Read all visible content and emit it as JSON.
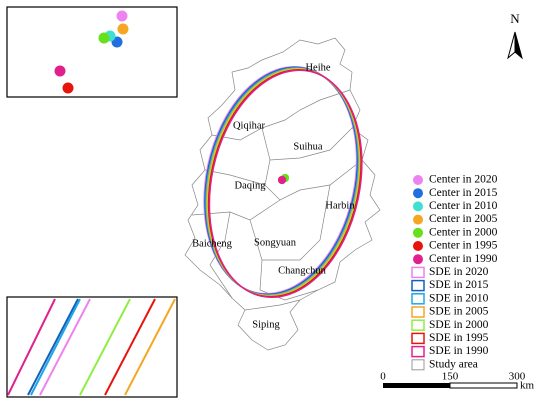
{
  "map": {
    "north_label": "N",
    "cities": [
      "Heihe",
      "Qiqihar",
      "Suihua",
      "Daqing",
      "Harbin",
      "Baicheng",
      "Songyuan",
      "Changchun",
      "Siping"
    ],
    "legend": [
      {
        "label": "Center in 2020",
        "color": "#ee82ee",
        "kind": "point"
      },
      {
        "label": "Center in 2015",
        "color": "#1f6fe0",
        "kind": "point"
      },
      {
        "label": "Center in 2010",
        "color": "#40e0d0",
        "kind": "point"
      },
      {
        "label": "Center in 2005",
        "color": "#f5a623",
        "kind": "point"
      },
      {
        "label": "Center in 2000",
        "color": "#66e01a",
        "kind": "point"
      },
      {
        "label": "Center in 1995",
        "color": "#e8140c",
        "kind": "point"
      },
      {
        "label": "Center in 1990",
        "color": "#e0208f",
        "kind": "point"
      },
      {
        "label": "SDE in 2020",
        "color": "#ee82ee",
        "kind": "ellipse"
      },
      {
        "label": "SDE in 2015",
        "color": "#1560bd",
        "kind": "ellipse"
      },
      {
        "label": "SDE in 2010",
        "color": "#1ea7e8",
        "kind": "ellipse"
      },
      {
        "label": "SDE in 2005",
        "color": "#f5a623",
        "kind": "ellipse"
      },
      {
        "label": "SDE in 2000",
        "color": "#90ee40",
        "kind": "ellipse"
      },
      {
        "label": "SDE in 1995",
        "color": "#e8140c",
        "kind": "ellipse"
      },
      {
        "label": "SDE in 1990",
        "color": "#e0208f",
        "kind": "ellipse"
      },
      {
        "label": "Study area",
        "color": "#999999",
        "kind": "area"
      }
    ],
    "scale_bar": {
      "labels": [
        "0",
        "150",
        "300"
      ],
      "unit": "km"
    }
  }
}
